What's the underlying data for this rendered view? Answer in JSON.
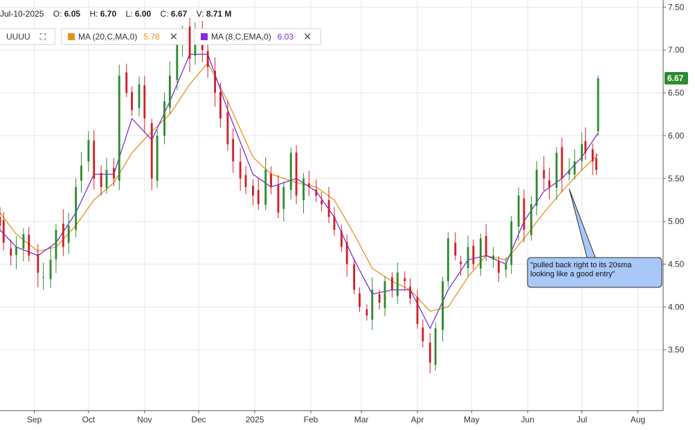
{
  "header": {
    "date": "Jul-10-2025",
    "open_label": "O:",
    "open": "6.05",
    "high_label": "H:",
    "high": "6.70",
    "low_label": "L:",
    "low": "6.00",
    "close_label": "C:",
    "close": "6.67",
    "volume_label": "V:",
    "volume": "8.71 M"
  },
  "symbol": "UUUU",
  "indicators": [
    {
      "label": "MA (20,C,MA,0)",
      "value": "5.78",
      "color": "#e8921d"
    },
    {
      "label": "MA (8,C,EMA,0)",
      "value": "6.03",
      "color": "#7b2ee0"
    }
  ],
  "last_price_label": "6.67",
  "annotation": {
    "text_line1": "\"pulled back right to its 20sma",
    "text_line2": "looking like a good entry\""
  },
  "colors": {
    "up": "#2e8b2e",
    "down": "#d0202a",
    "callout_fill": "#a8c8f8",
    "price_tag": "#2e8b2e"
  },
  "chart_data": {
    "type": "candlestick",
    "y_ticks": [
      "3.50",
      "4.00",
      "4.50",
      "5.00",
      "5.50",
      "6.00",
      "6.50",
      "7.00",
      "7.50"
    ],
    "ylim": [
      3.0,
      7.6
    ],
    "x_ticks": [
      {
        "label": "Sep",
        "date": "2024-09-01"
      },
      {
        "label": "Oct",
        "date": "2024-10-01"
      },
      {
        "label": "Nov",
        "date": "2024-11-01"
      },
      {
        "label": "Dec",
        "date": "2024-12-01"
      },
      {
        "label": "2025",
        "date": "2025-01-01"
      },
      {
        "label": "Feb",
        "date": "2025-02-01"
      },
      {
        "label": "Mar",
        "date": "2025-03-01"
      },
      {
        "label": "Apr",
        "date": "2025-04-01"
      },
      {
        "label": "May",
        "date": "2025-05-01"
      },
      {
        "label": "Jun",
        "date": "2025-06-01"
      },
      {
        "label": "Jul",
        "date": "2025-07-01"
      },
      {
        "label": "Aug",
        "date": "2025-08-01"
      }
    ],
    "grid": true,
    "close_series": {
      "name": "Close",
      "points": [
        [
          "2024-08-13",
          4.95
        ],
        [
          "2024-08-15",
          4.75
        ],
        [
          "2024-08-19",
          4.6
        ],
        [
          "2024-08-22",
          4.7
        ],
        [
          "2024-08-26",
          4.85
        ],
        [
          "2024-08-29",
          4.6
        ],
        [
          "2024-09-03",
          4.4
        ],
        [
          "2024-09-06",
          4.35
        ],
        [
          "2024-09-10",
          4.55
        ],
        [
          "2024-09-13",
          4.9
        ],
        [
          "2024-09-17",
          4.7
        ],
        [
          "2024-09-20",
          4.95
        ],
        [
          "2024-09-24",
          5.4
        ],
        [
          "2024-09-27",
          5.65
        ],
        [
          "2024-10-01",
          5.95
        ],
        [
          "2024-10-04",
          5.5
        ],
        [
          "2024-10-08",
          5.4
        ],
        [
          "2024-10-11",
          5.6
        ],
        [
          "2024-10-15",
          5.5
        ],
        [
          "2024-10-18",
          6.7
        ],
        [
          "2024-10-22",
          6.5
        ],
        [
          "2024-10-25",
          6.3
        ],
        [
          "2024-10-29",
          6.6
        ],
        [
          "2024-11-01",
          6.2
        ],
        [
          "2024-11-05",
          5.5
        ],
        [
          "2024-11-08",
          6.0
        ],
        [
          "2024-11-12",
          6.4
        ],
        [
          "2024-11-15",
          6.7
        ],
        [
          "2024-11-19",
          7.1
        ],
        [
          "2024-11-22",
          7.2
        ],
        [
          "2024-11-26",
          6.9
        ],
        [
          "2024-11-29",
          7.25
        ],
        [
          "2024-12-03",
          7.0
        ],
        [
          "2024-12-06",
          6.8
        ],
        [
          "2024-12-10",
          6.5
        ],
        [
          "2024-12-13",
          6.2
        ],
        [
          "2024-12-17",
          5.9
        ],
        [
          "2024-12-20",
          5.7
        ],
        [
          "2024-12-24",
          5.5
        ],
        [
          "2024-12-27",
          5.4
        ],
        [
          "2024-12-31",
          5.3
        ],
        [
          "2025-01-03",
          5.2
        ],
        [
          "2025-01-07",
          5.6
        ],
        [
          "2025-01-10",
          5.4
        ],
        [
          "2025-01-14",
          5.1
        ],
        [
          "2025-01-17",
          5.4
        ],
        [
          "2025-01-21",
          5.8
        ],
        [
          "2025-01-24",
          5.3
        ],
        [
          "2025-01-28",
          5.5
        ],
        [
          "2025-01-31",
          5.4
        ],
        [
          "2025-02-04",
          5.3
        ],
        [
          "2025-02-07",
          5.2
        ],
        [
          "2025-02-11",
          5.05
        ],
        [
          "2025-02-14",
          4.9
        ],
        [
          "2025-02-18",
          4.7
        ],
        [
          "2025-02-21",
          4.5
        ],
        [
          "2025-02-25",
          4.2
        ],
        [
          "2025-02-28",
          4.0
        ],
        [
          "2025-03-04",
          3.9
        ],
        [
          "2025-03-07",
          4.2
        ],
        [
          "2025-03-11",
          4.05
        ],
        [
          "2025-03-14",
          4.3
        ],
        [
          "2025-03-18",
          4.2
        ],
        [
          "2025-03-21",
          4.4
        ],
        [
          "2025-03-25",
          4.3
        ],
        [
          "2025-03-28",
          4.1
        ],
        [
          "2025-04-01",
          3.8
        ],
        [
          "2025-04-04",
          3.6
        ],
        [
          "2025-04-08",
          3.35
        ],
        [
          "2025-04-11",
          3.75
        ],
        [
          "2025-04-15",
          4.3
        ],
        [
          "2025-04-18",
          4.8
        ],
        [
          "2025-04-22",
          4.6
        ],
        [
          "2025-04-25",
          4.5
        ],
        [
          "2025-04-29",
          4.7
        ],
        [
          "2025-05-02",
          4.5
        ],
        [
          "2025-05-06",
          4.8
        ],
        [
          "2025-05-09",
          4.6
        ],
        [
          "2025-05-13",
          4.6
        ],
        [
          "2025-05-16",
          4.4
        ],
        [
          "2025-05-20",
          4.5
        ],
        [
          "2025-05-23",
          5.0
        ],
        [
          "2025-05-27",
          5.3
        ],
        [
          "2025-05-30",
          4.9
        ],
        [
          "2025-06-03",
          5.2
        ],
        [
          "2025-06-06",
          5.6
        ],
        [
          "2025-06-10",
          5.5
        ],
        [
          "2025-06-13",
          5.4
        ],
        [
          "2025-06-17",
          5.8
        ],
        [
          "2025-06-20",
          5.5
        ],
        [
          "2025-06-24",
          5.6
        ],
        [
          "2025-06-27",
          5.7
        ],
        [
          "2025-07-01",
          5.9
        ],
        [
          "2025-07-03",
          5.8
        ],
        [
          "2025-07-07",
          5.7
        ],
        [
          "2025-07-09",
          5.6
        ],
        [
          "2025-07-10",
          6.67
        ]
      ]
    },
    "series": [
      {
        "name": "MA (20,C,MA,0)",
        "color": "#e8921d",
        "points": [
          [
            "2024-08-13",
            5.1
          ],
          [
            "2024-08-22",
            4.85
          ],
          [
            "2024-09-03",
            4.65
          ],
          [
            "2024-09-13",
            4.7
          ],
          [
            "2024-09-24",
            4.95
          ],
          [
            "2024-10-04",
            5.25
          ],
          [
            "2024-10-15",
            5.45
          ],
          [
            "2024-10-25",
            5.8
          ],
          [
            "2024-11-05",
            6.05
          ],
          [
            "2024-11-15",
            6.25
          ],
          [
            "2024-11-26",
            6.6
          ],
          [
            "2024-12-06",
            6.85
          ],
          [
            "2024-12-17",
            6.4
          ],
          [
            "2024-12-31",
            5.75
          ],
          [
            "2025-01-10",
            5.55
          ],
          [
            "2025-01-24",
            5.45
          ],
          [
            "2025-02-04",
            5.4
          ],
          [
            "2025-02-14",
            5.25
          ],
          [
            "2025-02-25",
            4.85
          ],
          [
            "2025-03-07",
            4.45
          ],
          [
            "2025-03-18",
            4.3
          ],
          [
            "2025-03-28",
            4.2
          ],
          [
            "2025-04-08",
            3.95
          ],
          [
            "2025-04-18",
            4.0
          ],
          [
            "2025-04-29",
            4.35
          ],
          [
            "2025-05-09",
            4.6
          ],
          [
            "2025-05-20",
            4.55
          ],
          [
            "2025-05-30",
            4.8
          ],
          [
            "2025-06-10",
            5.1
          ],
          [
            "2025-06-20",
            5.35
          ],
          [
            "2025-07-01",
            5.6
          ],
          [
            "2025-07-10",
            5.78
          ]
        ]
      },
      {
        "name": "MA (8,C,EMA,0)",
        "color": "#7b2ee0",
        "points": [
          [
            "2024-08-13",
            4.9
          ],
          [
            "2024-08-22",
            4.7
          ],
          [
            "2024-09-03",
            4.6
          ],
          [
            "2024-09-13",
            4.75
          ],
          [
            "2024-09-24",
            5.1
          ],
          [
            "2024-10-04",
            5.55
          ],
          [
            "2024-10-15",
            5.55
          ],
          [
            "2024-10-25",
            6.2
          ],
          [
            "2024-11-05",
            5.95
          ],
          [
            "2024-11-15",
            6.4
          ],
          [
            "2024-11-26",
            6.95
          ],
          [
            "2024-12-06",
            6.95
          ],
          [
            "2024-12-17",
            6.3
          ],
          [
            "2024-12-31",
            5.55
          ],
          [
            "2025-01-10",
            5.4
          ],
          [
            "2025-01-24",
            5.5
          ],
          [
            "2025-02-04",
            5.35
          ],
          [
            "2025-02-14",
            5.05
          ],
          [
            "2025-02-25",
            4.55
          ],
          [
            "2025-03-07",
            4.15
          ],
          [
            "2025-03-18",
            4.2
          ],
          [
            "2025-03-28",
            4.2
          ],
          [
            "2025-04-08",
            3.75
          ],
          [
            "2025-04-18",
            4.2
          ],
          [
            "2025-04-29",
            4.55
          ],
          [
            "2025-05-09",
            4.6
          ],
          [
            "2025-05-20",
            4.5
          ],
          [
            "2025-05-30",
            5.0
          ],
          [
            "2025-06-10",
            5.35
          ],
          [
            "2025-06-20",
            5.5
          ],
          [
            "2025-07-01",
            5.75
          ],
          [
            "2025-07-10",
            6.03
          ]
        ]
      }
    ]
  }
}
